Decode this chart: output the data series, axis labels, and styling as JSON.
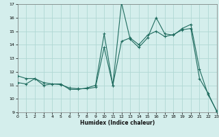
{
  "title": "",
  "xlabel": "Humidex (Indice chaleur)",
  "bg_color": "#d4eeec",
  "grid_color": "#b0d8d4",
  "line_color": "#1e6b5e",
  "xlim": [
    0,
    23
  ],
  "ylim": [
    9,
    17
  ],
  "xticks": [
    0,
    1,
    2,
    3,
    4,
    5,
    6,
    7,
    8,
    9,
    10,
    11,
    12,
    13,
    14,
    15,
    16,
    17,
    18,
    19,
    20,
    21,
    22,
    23
  ],
  "yticks": [
    9,
    10,
    11,
    12,
    13,
    14,
    15,
    16,
    17
  ],
  "line1_x": [
    0,
    1,
    2,
    3,
    4,
    5,
    6,
    7,
    8,
    9,
    10,
    11,
    12,
    13,
    14,
    15,
    16,
    17,
    18,
    19,
    20,
    21,
    22,
    23
  ],
  "line1_y": [
    11.2,
    11.1,
    11.5,
    11.0,
    11.1,
    11.1,
    10.7,
    10.7,
    10.8,
    11.0,
    14.8,
    11.0,
    17.1,
    14.4,
    13.8,
    14.5,
    16.0,
    14.8,
    14.7,
    15.2,
    15.5,
    12.2,
    10.3,
    9.1
  ],
  "line2_x": [
    0,
    1,
    2,
    3,
    4,
    5,
    6,
    7,
    8,
    9,
    10,
    11,
    12,
    13,
    14,
    15,
    16,
    17,
    18,
    19,
    20,
    21,
    22,
    23
  ],
  "line2_y": [
    11.7,
    11.5,
    11.5,
    11.2,
    11.1,
    11.05,
    10.8,
    10.75,
    10.75,
    10.85,
    13.8,
    11.0,
    14.25,
    14.5,
    14.0,
    14.7,
    15.0,
    14.6,
    14.75,
    15.1,
    15.2,
    11.5,
    10.4,
    9.05
  ]
}
